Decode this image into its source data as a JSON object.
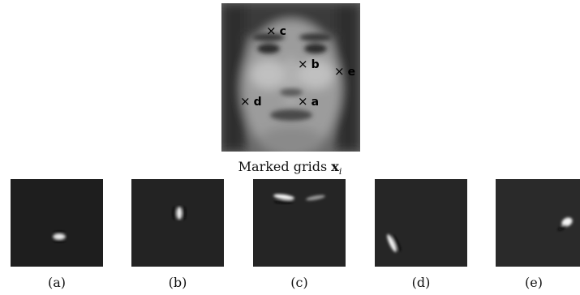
{
  "figure": {
    "caption_text": "Marked grids ",
    "caption_symbol": "x",
    "caption_subscript": "i",
    "markers": [
      {
        "letter": "c",
        "symbol": "×"
      },
      {
        "letter": "b",
        "symbol": "×"
      },
      {
        "letter": "e",
        "symbol": "×"
      },
      {
        "letter": "d",
        "symbol": "×"
      },
      {
        "letter": "a",
        "symbol": "×"
      }
    ],
    "panels": [
      {
        "label": "(a)"
      },
      {
        "label": "(b)"
      },
      {
        "label": "(c)"
      },
      {
        "label": "(d)"
      },
      {
        "label": "(e)"
      }
    ]
  }
}
